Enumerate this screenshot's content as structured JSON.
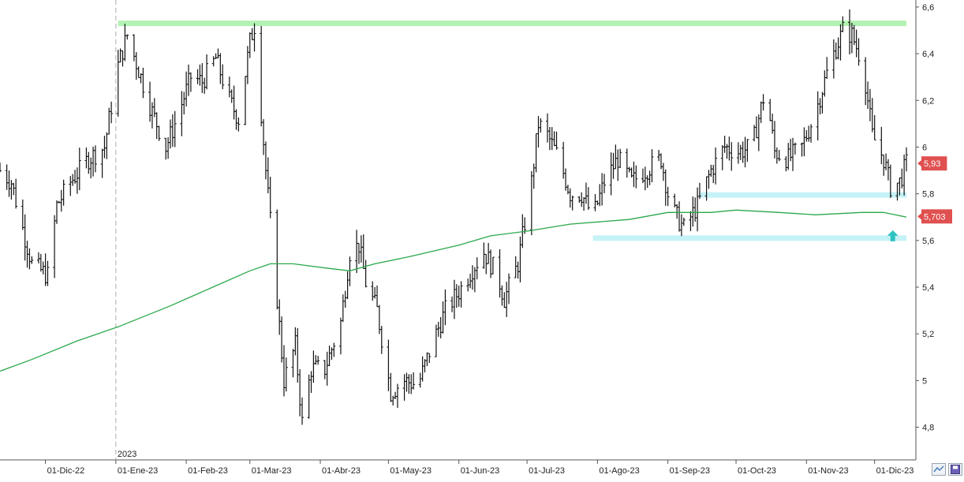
{
  "chart_data": {
    "type": "ohlc",
    "title": "",
    "xlabel": "",
    "ylabel": "",
    "ylim": [
      4.66,
      6.63
    ],
    "x_range": [
      "2022-11-11",
      "2023-12-15"
    ],
    "y_ticks": [
      "4,8",
      "5",
      "5,2",
      "5,4",
      "5,6",
      "5,8",
      "6",
      "6,2",
      "6,4",
      "6,6"
    ],
    "y_tick_values": [
      4.8,
      5.0,
      5.2,
      5.4,
      5.6,
      5.8,
      6.0,
      6.2,
      6.4,
      6.6
    ],
    "x_tick_labels": [
      {
        "date": "2022-12-01",
        "label": "01-Dic-22"
      },
      {
        "date": "2023-01-01",
        "label": "01-Ene-23"
      },
      {
        "date": "2023-02-01",
        "label": "01-Feb-23"
      },
      {
        "date": "2023-03-01",
        "label": "01-Mar-23"
      },
      {
        "date": "2023-04-01",
        "label": "01-Abr-23"
      },
      {
        "date": "2023-05-01",
        "label": "01-May-23"
      },
      {
        "date": "2023-06-01",
        "label": "01-Jun-23"
      },
      {
        "date": "2023-07-01",
        "label": "01-Jul-23"
      },
      {
        "date": "2023-08-01",
        "label": "01-Ago-23"
      },
      {
        "date": "2023-09-01",
        "label": "01-Sep-23"
      },
      {
        "date": "2023-10-01",
        "label": "01-Oct-23"
      },
      {
        "date": "2023-11-01",
        "label": "01-Nov-23"
      },
      {
        "date": "2023-12-01",
        "label": "01-Dic-23"
      }
    ],
    "year_marker": {
      "date": "2023-01-01",
      "label": "2023"
    },
    "price_series": {
      "anchors": [
        [
          "2022-11-11",
          5.9
        ],
        [
          "2022-11-16",
          5.85
        ],
        [
          "2022-11-21",
          5.65
        ],
        [
          "2022-11-25",
          5.5
        ],
        [
          "2022-12-02",
          5.45
        ],
        [
          "2022-12-06",
          5.75
        ],
        [
          "2022-12-12",
          5.85
        ],
        [
          "2022-12-20",
          5.95
        ],
        [
          "2022-12-27",
          6.0
        ],
        [
          "2023-01-02",
          6.35
        ],
        [
          "2023-01-06",
          6.48
        ],
        [
          "2023-01-12",
          6.3
        ],
        [
          "2023-01-17",
          6.15
        ],
        [
          "2023-01-23",
          6.0
        ],
        [
          "2023-01-27",
          6.1
        ],
        [
          "2023-02-03",
          6.3
        ],
        [
          "2023-02-08",
          6.28
        ],
        [
          "2023-02-14",
          6.38
        ],
        [
          "2023-02-20",
          6.2
        ],
        [
          "2023-02-24",
          6.12
        ],
        [
          "2023-03-01",
          6.45
        ],
        [
          "2023-03-03",
          6.52
        ],
        [
          "2023-03-08",
          5.9
        ],
        [
          "2023-03-13",
          5.35
        ],
        [
          "2023-03-16",
          5.0
        ],
        [
          "2023-03-21",
          5.15
        ],
        [
          "2023-03-24",
          4.82
        ],
        [
          "2023-03-28",
          5.05
        ],
        [
          "2023-04-03",
          5.05
        ],
        [
          "2023-04-10",
          5.25
        ],
        [
          "2023-04-14",
          5.55
        ],
        [
          "2023-04-18",
          5.58
        ],
        [
          "2023-04-21",
          5.42
        ],
        [
          "2023-04-26",
          5.3
        ],
        [
          "2023-05-02",
          4.95
        ],
        [
          "2023-05-08",
          5.0
        ],
        [
          "2023-05-14",
          4.98
        ],
        [
          "2023-05-20",
          5.15
        ],
        [
          "2023-05-26",
          5.3
        ],
        [
          "2023-06-01",
          5.38
        ],
        [
          "2023-06-07",
          5.48
        ],
        [
          "2023-06-12",
          5.55
        ],
        [
          "2023-06-18",
          5.45
        ],
        [
          "2023-06-21",
          5.35
        ],
        [
          "2023-06-27",
          5.5
        ],
        [
          "2023-07-03",
          5.85
        ],
        [
          "2023-07-06",
          6.1
        ],
        [
          "2023-07-10",
          6.05
        ],
        [
          "2023-07-15",
          5.95
        ],
        [
          "2023-07-20",
          5.8
        ],
        [
          "2023-07-25",
          5.8
        ],
        [
          "2023-07-30",
          5.7
        ],
        [
          "2023-08-04",
          5.85
        ],
        [
          "2023-08-10",
          5.95
        ],
        [
          "2023-08-16",
          5.85
        ],
        [
          "2023-08-22",
          5.9
        ],
        [
          "2023-08-29",
          5.95
        ],
        [
          "2023-09-02",
          5.75
        ],
        [
          "2023-09-08",
          5.65
        ],
        [
          "2023-09-14",
          5.75
        ],
        [
          "2023-09-20",
          5.9
        ],
        [
          "2023-09-26",
          6.0
        ],
        [
          "2023-10-02",
          5.98
        ],
        [
          "2023-10-08",
          6.0
        ],
        [
          "2023-10-14",
          6.25
        ],
        [
          "2023-10-18",
          5.98
        ],
        [
          "2023-10-24",
          5.95
        ],
        [
          "2023-10-30",
          6.0
        ],
        [
          "2023-11-05",
          6.15
        ],
        [
          "2023-11-11",
          6.35
        ],
        [
          "2023-11-17",
          6.5
        ],
        [
          "2023-11-21",
          6.48
        ],
        [
          "2023-11-26",
          6.35
        ],
        [
          "2023-11-30",
          6.05
        ],
        [
          "2023-12-05",
          5.95
        ],
        [
          "2023-12-08",
          5.83
        ],
        [
          "2023-12-12",
          5.85
        ],
        [
          "2023-12-15",
          5.93
        ]
      ],
      "last_value": 5.93,
      "last_value_label": "5,93"
    },
    "moving_average": {
      "points": [
        [
          "2022-11-11",
          5.04
        ],
        [
          "2022-11-25",
          5.09
        ],
        [
          "2022-12-15",
          5.17
        ],
        [
          "2023-01-02",
          5.23
        ],
        [
          "2023-01-25",
          5.32
        ],
        [
          "2023-02-15",
          5.41
        ],
        [
          "2023-03-01",
          5.47
        ],
        [
          "2023-03-10",
          5.5
        ],
        [
          "2023-03-20",
          5.5
        ],
        [
          "2023-04-05",
          5.48
        ],
        [
          "2023-04-14",
          5.47
        ],
        [
          "2023-04-25",
          5.5
        ],
        [
          "2023-05-10",
          5.53
        ],
        [
          "2023-06-01",
          5.58
        ],
        [
          "2023-06-15",
          5.62
        ],
        [
          "2023-07-01",
          5.64
        ],
        [
          "2023-07-20",
          5.67
        ],
        [
          "2023-08-15",
          5.69
        ],
        [
          "2023-09-01",
          5.72
        ],
        [
          "2023-09-20",
          5.72
        ],
        [
          "2023-10-01",
          5.73
        ],
        [
          "2023-10-20",
          5.72
        ],
        [
          "2023-11-05",
          5.71
        ],
        [
          "2023-11-25",
          5.72
        ],
        [
          "2023-12-05",
          5.72
        ],
        [
          "2023-12-15",
          5.7
        ]
      ],
      "color": "#2aa84a",
      "last_value": 5.703,
      "last_value_label": "5,703"
    },
    "horizontal_levels": [
      {
        "value": 6.53,
        "from": "2023-01-02",
        "to": "2023-12-15",
        "color": "#b2f2b2"
      },
      {
        "value": 5.795,
        "from": "2023-09-15",
        "to": "2023-12-15",
        "color": "#c6f2f6"
      },
      {
        "value": 5.61,
        "from": "2023-07-30",
        "to": "2023-12-15",
        "color": "#c6f2f6"
      }
    ],
    "annotation_arrow": {
      "date": "2023-12-09",
      "value": 5.62,
      "direction": "up",
      "color": "#2ec3c3"
    },
    "colors": {
      "bars": "#111111",
      "last_value_badge": "#e05050",
      "grid": "#cccccc",
      "year_divider": "#aaaaaa"
    },
    "grid": false
  },
  "toolbar": {
    "icons": [
      "chart-zoom-icon",
      "save-disk-icon"
    ]
  }
}
